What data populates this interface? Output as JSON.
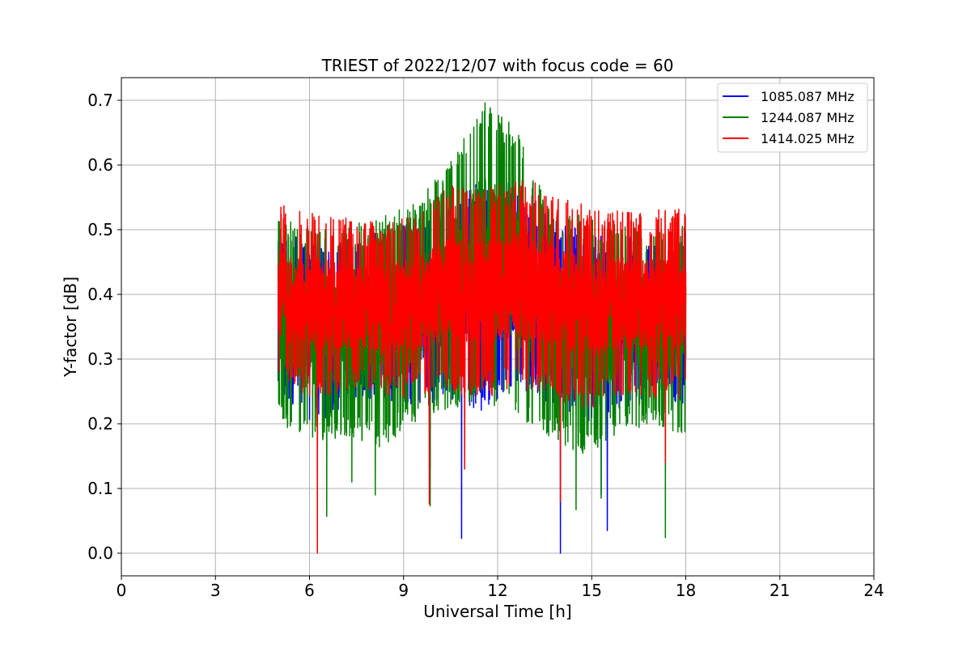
{
  "chart_data": {
    "type": "line",
    "title": "TRIEST of 2022/12/07 with focus code = 60",
    "xlabel": "Universal Time [h]",
    "ylabel": "Y-factor [dB]",
    "xlim": [
      0,
      24
    ],
    "ylim": [
      -0.035,
      0.735
    ],
    "xticks": [
      0,
      3,
      6,
      9,
      12,
      15,
      18,
      21,
      24
    ],
    "yticks": [
      0.0,
      0.1,
      0.2,
      0.3,
      0.4,
      0.5,
      0.6,
      0.7
    ],
    "ytick_labels": [
      "0.0",
      "0.1",
      "0.2",
      "0.3",
      "0.4",
      "0.5",
      "0.6",
      "0.7"
    ],
    "grid": true,
    "legend_position": "top-right",
    "time_range": [
      5.0,
      18.0
    ],
    "series": [
      {
        "name": "1085.087 MHz",
        "color": "#0000ff",
        "baseline": 0.39,
        "spread": 0.09,
        "envelope_upper": [
          0.5,
          0.48,
          0.49,
          0.5,
          0.52,
          0.53,
          0.58,
          0.57,
          0.52,
          0.5,
          0.49,
          0.49,
          0.5
        ],
        "envelope_lower": [
          0.25,
          0.2,
          0.22,
          0.24,
          0.22,
          0.24,
          0.22,
          0.26,
          0.23,
          0.2,
          0.22,
          0.24,
          0.23
        ],
        "dips": [
          [
            10.85,
            0.023
          ],
          [
            14.0,
            0.0
          ],
          [
            15.5,
            0.035
          ],
          [
            9.85,
            0.13
          ],
          [
            15.3,
            0.09
          ]
        ]
      },
      {
        "name": "1244.087 MHz",
        "color": "#008000",
        "baseline": 0.38,
        "spread": 0.11,
        "envelope_upper": [
          0.52,
          0.5,
          0.51,
          0.52,
          0.54,
          0.6,
          0.7,
          0.66,
          0.54,
          0.52,
          0.51,
          0.5,
          0.51
        ],
        "envelope_lower": [
          0.2,
          0.17,
          0.18,
          0.16,
          0.2,
          0.22,
          0.24,
          0.2,
          0.18,
          0.15,
          0.18,
          0.2,
          0.18
        ],
        "dips": [
          [
            6.55,
            0.057
          ],
          [
            7.35,
            0.11
          ],
          [
            8.1,
            0.09
          ],
          [
            14.5,
            0.067
          ],
          [
            15.3,
            0.085
          ],
          [
            17.35,
            0.024
          ],
          [
            9.85,
            0.073
          ]
        ]
      },
      {
        "name": "1414.025 MHz",
        "color": "#ff0000",
        "baseline": 0.4,
        "spread": 0.08,
        "envelope_upper": [
          0.55,
          0.53,
          0.52,
          0.51,
          0.53,
          0.57,
          0.56,
          0.58,
          0.57,
          0.54,
          0.53,
          0.53,
          0.54
        ],
        "envelope_lower": [
          0.26,
          0.24,
          0.25,
          0.24,
          0.24,
          0.25,
          0.24,
          0.25,
          0.24,
          0.22,
          0.24,
          0.24,
          0.24
        ],
        "dips": [
          [
            6.25,
            0.0
          ],
          [
            9.82,
            0.076
          ],
          [
            10.95,
            0.13
          ],
          [
            14.0,
            0.08
          ],
          [
            17.35,
            0.14
          ]
        ]
      }
    ]
  }
}
